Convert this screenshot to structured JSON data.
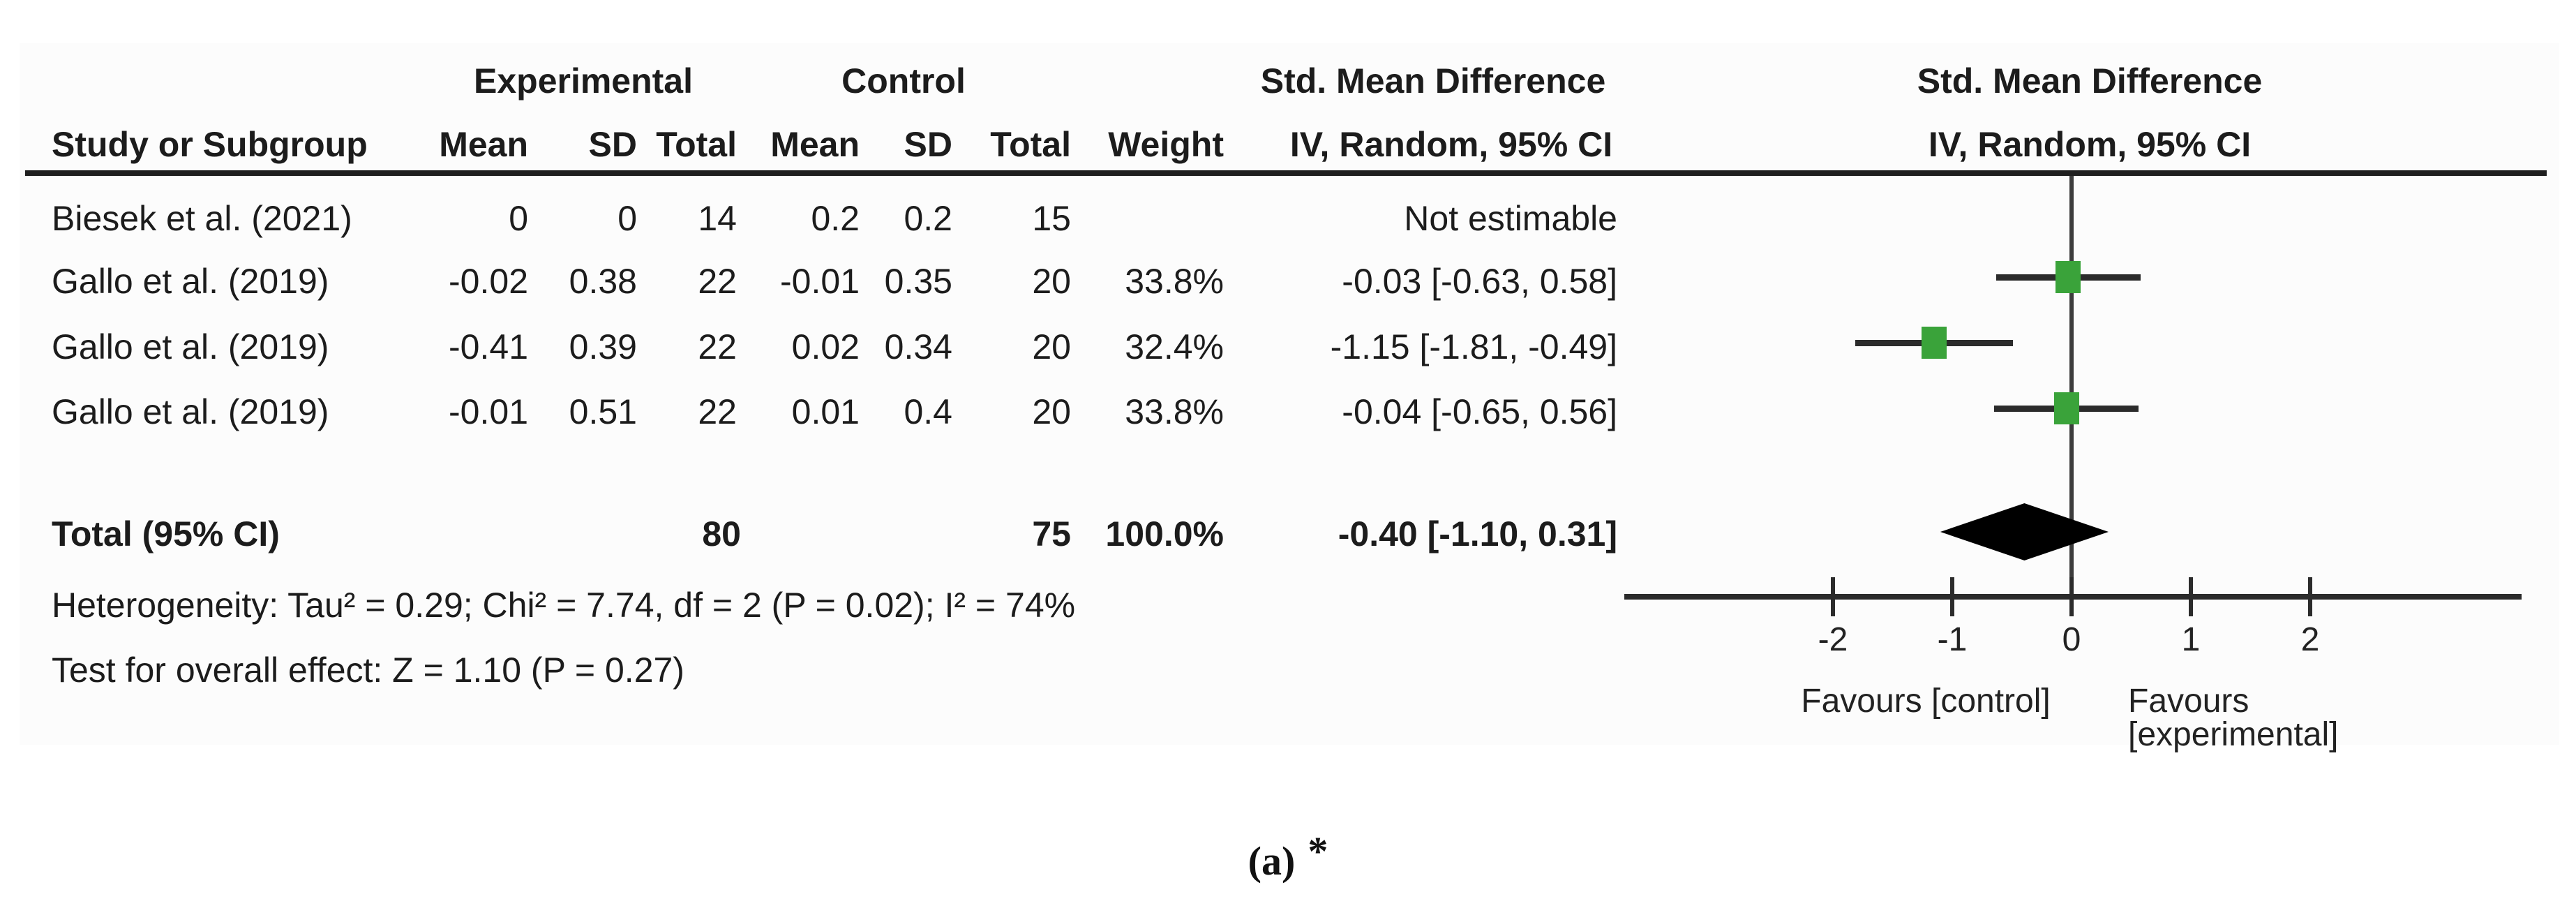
{
  "figure": {
    "group_headers": {
      "experimental": "Experimental",
      "control": "Control",
      "smd_table": "Std. Mean Difference",
      "smd_plot": "Std. Mean Difference"
    },
    "column_headers": {
      "study": "Study or Subgroup",
      "mean_exp": "Mean",
      "sd_exp": "SD",
      "total_exp": "Total",
      "mean_ctrl": "Mean",
      "sd_ctrl": "SD",
      "total_ctrl": "Total",
      "weight": "Weight",
      "ci_table": "IV, Random, 95% CI",
      "ci_plot": "IV, Random, 95% CI"
    },
    "rows": [
      {
        "study": "Biesek et al. (2021)",
        "mean_exp": "0",
        "sd_exp": "0",
        "total_exp": "14",
        "mean_ctrl": "0.2",
        "sd_ctrl": "0.2",
        "total_ctrl": "15",
        "weight": "",
        "ci": "Not estimable"
      },
      {
        "study": "Gallo et al. (2019)",
        "mean_exp": "-0.02",
        "sd_exp": "0.38",
        "total_exp": "22",
        "mean_ctrl": "-0.01",
        "sd_ctrl": "0.35",
        "total_ctrl": "20",
        "weight": "33.8%",
        "ci": "-0.03 [-0.63, 0.58]"
      },
      {
        "study": "Gallo et al. (2019)",
        "mean_exp": "-0.41",
        "sd_exp": "0.39",
        "total_exp": "22",
        "mean_ctrl": "0.02",
        "sd_ctrl": "0.34",
        "total_ctrl": "20",
        "weight": "32.4%",
        "ci": "-1.15 [-1.81, -0.49]"
      },
      {
        "study": "Gallo et al. (2019)",
        "mean_exp": "-0.01",
        "sd_exp": "0.51",
        "total_exp": "22",
        "mean_ctrl": "0.01",
        "sd_ctrl": "0.4",
        "total_ctrl": "20",
        "weight": "33.8%",
        "ci": "-0.04 [-0.65, 0.56]"
      }
    ],
    "total_row": {
      "label": "Total (95% CI)",
      "total_exp": "80",
      "total_ctrl": "75",
      "weight": "100.0%",
      "ci": "-0.40 [-1.10, 0.31]"
    },
    "heterogeneity": "Heterogeneity: Tau² = 0.29; Chi² = 7.74, df = 2 (P = 0.02); I² = 74%",
    "overall_effect": "Test for overall effect: Z = 1.10 (P = 0.27)",
    "favours_left": "Favours [control]",
    "favours_right": "Favours [experimental]",
    "caption_label": "(a)",
    "caption_mark": "*"
  },
  "colors": {
    "marker_green": "#3aa33a",
    "line_dark": "#2b2b2b",
    "diamond_black": "#000000"
  },
  "chart_data": {
    "type": "scatter",
    "subtype": "forest_plot_meta_analysis",
    "title": "Std. Mean Difference, IV, Random, 95% CI",
    "x_ticks": [
      -2,
      -1,
      0,
      1,
      2
    ],
    "xlim": [
      -3.75,
      3.77
    ],
    "zero_line_x": 0,
    "grid": false,
    "studies": [
      {
        "name": "Biesek et al. (2021)",
        "smd": null,
        "ci_low": null,
        "ci_high": null,
        "weight_pct": null,
        "note": "Not estimable"
      },
      {
        "name": "Gallo et al. (2019)",
        "smd": -0.03,
        "ci_low": -0.63,
        "ci_high": 0.58,
        "weight_pct": 33.8
      },
      {
        "name": "Gallo et al. (2019)",
        "smd": -1.15,
        "ci_low": -1.81,
        "ci_high": -0.49,
        "weight_pct": 32.4
      },
      {
        "name": "Gallo et al. (2019)",
        "smd": -0.04,
        "ci_low": -0.65,
        "ci_high": 0.56,
        "weight_pct": 33.8
      }
    ],
    "total": {
      "label": "Total (95% CI)",
      "smd": -0.4,
      "ci_low": -1.1,
      "ci_high": 0.31,
      "weight_pct": 100.0,
      "n_exp": 80,
      "n_ctrl": 75
    },
    "heterogeneity": {
      "tau2": 0.29,
      "chi2": 7.74,
      "df": 2,
      "p": 0.02,
      "i2_pct": 74
    },
    "overall_effect": {
      "z": 1.1,
      "p": 0.27
    },
    "axis_labels": {
      "left": "Favours [control]",
      "right": "Favours [experimental]"
    }
  }
}
